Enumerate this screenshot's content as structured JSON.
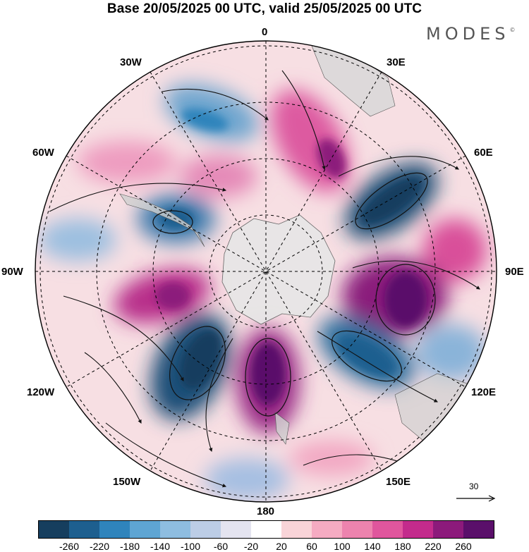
{
  "title": "Base 20/05/2025 00 UTC, valid 25/05/2025 00 UTC",
  "brand": "MODES",
  "brand_mark": "©",
  "longitude_labels": {
    "top": "0",
    "top_left": "30W",
    "top_right": "30E",
    "upper_left": "60W",
    "upper_right": "60E",
    "left": "90W",
    "right": "90E",
    "lower_left": "120W",
    "lower_right": "120E",
    "bottom_left": "150W",
    "bottom_right": "150E",
    "bottom": "180"
  },
  "reference_vector": {
    "label": "30",
    "icon": "arrow-right-icon"
  },
  "colorbar": {
    "colors": [
      "#163e5e",
      "#1d5f8f",
      "#2f84bc",
      "#5ea5d3",
      "#8ebde0",
      "#bccde6",
      "#e4e4f0",
      "#ffffff",
      "#f9d4d8",
      "#f5abc2",
      "#ed83ae",
      "#e0569d",
      "#c32b8c",
      "#8c1a7b",
      "#5a0f6a"
    ],
    "tick_labels": [
      "-260",
      "-220",
      "-180",
      "-140",
      "-100",
      "-60",
      "-20",
      "20",
      "60",
      "100",
      "140",
      "180",
      "220",
      "260"
    ]
  },
  "colors": {
    "land": "#e6e6e6",
    "graticule": "#000000",
    "arrows": "#111111"
  }
}
